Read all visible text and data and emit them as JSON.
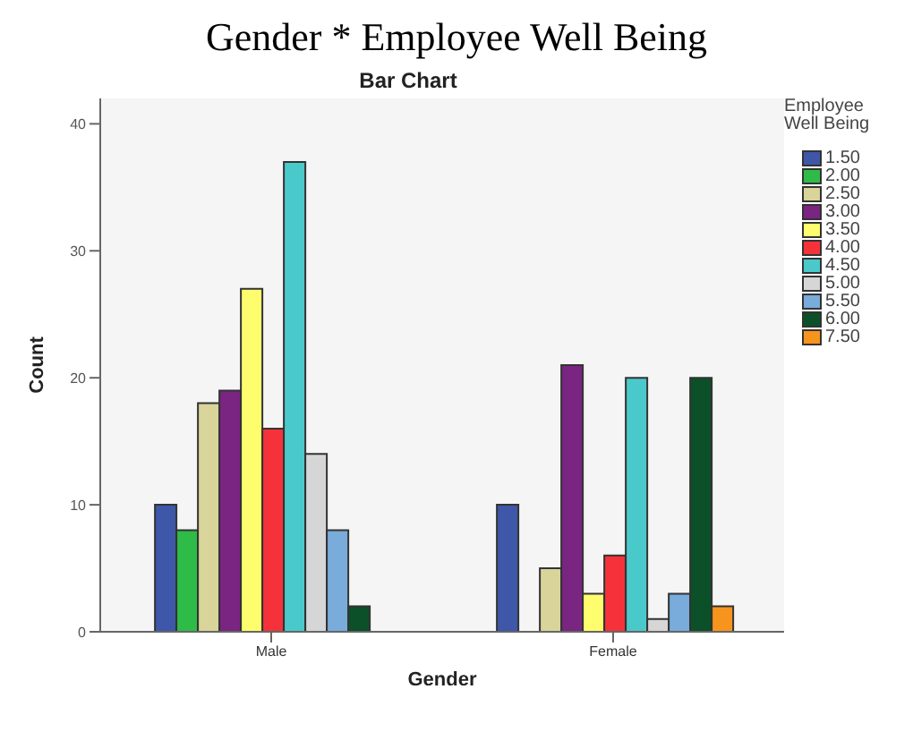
{
  "chart_data": {
    "type": "bar",
    "title": "Gender * Employee Well Being",
    "subtitle": "Bar Chart",
    "xlabel": "Gender",
    "ylabel": "Count",
    "legend_title": "Employee Well Being",
    "categories": [
      "Male",
      "Female"
    ],
    "series": [
      {
        "name": "1.50",
        "color": "#3f57a8",
        "values": [
          10,
          10
        ]
      },
      {
        "name": "2.00",
        "color": "#2fbb47",
        "values": [
          8,
          null
        ]
      },
      {
        "name": "2.50",
        "color": "#d8d49a",
        "values": [
          18,
          5
        ]
      },
      {
        "name": "3.00",
        "color": "#7a2582",
        "values": [
          19,
          21
        ]
      },
      {
        "name": "3.50",
        "color": "#fdfd6e",
        "values": [
          27,
          3
        ]
      },
      {
        "name": "4.00",
        "color": "#f5323a",
        "values": [
          16,
          6
        ]
      },
      {
        "name": "4.50",
        "color": "#4ac9cb",
        "values": [
          37,
          20
        ]
      },
      {
        "name": "5.00",
        "color": "#d6d6d6",
        "values": [
          14,
          1
        ]
      },
      {
        "name": "5.50",
        "color": "#79abdb",
        "values": [
          8,
          3
        ]
      },
      {
        "name": "6.00",
        "color": "#0b5028",
        "values": [
          2,
          20
        ]
      },
      {
        "name": "7.50",
        "color": "#f7941d",
        "values": [
          null,
          2
        ]
      }
    ],
    "ylim": [
      0,
      42
    ],
    "yticks": [
      0,
      10,
      20,
      30,
      40
    ],
    "grid": false,
    "legend": "right"
  }
}
